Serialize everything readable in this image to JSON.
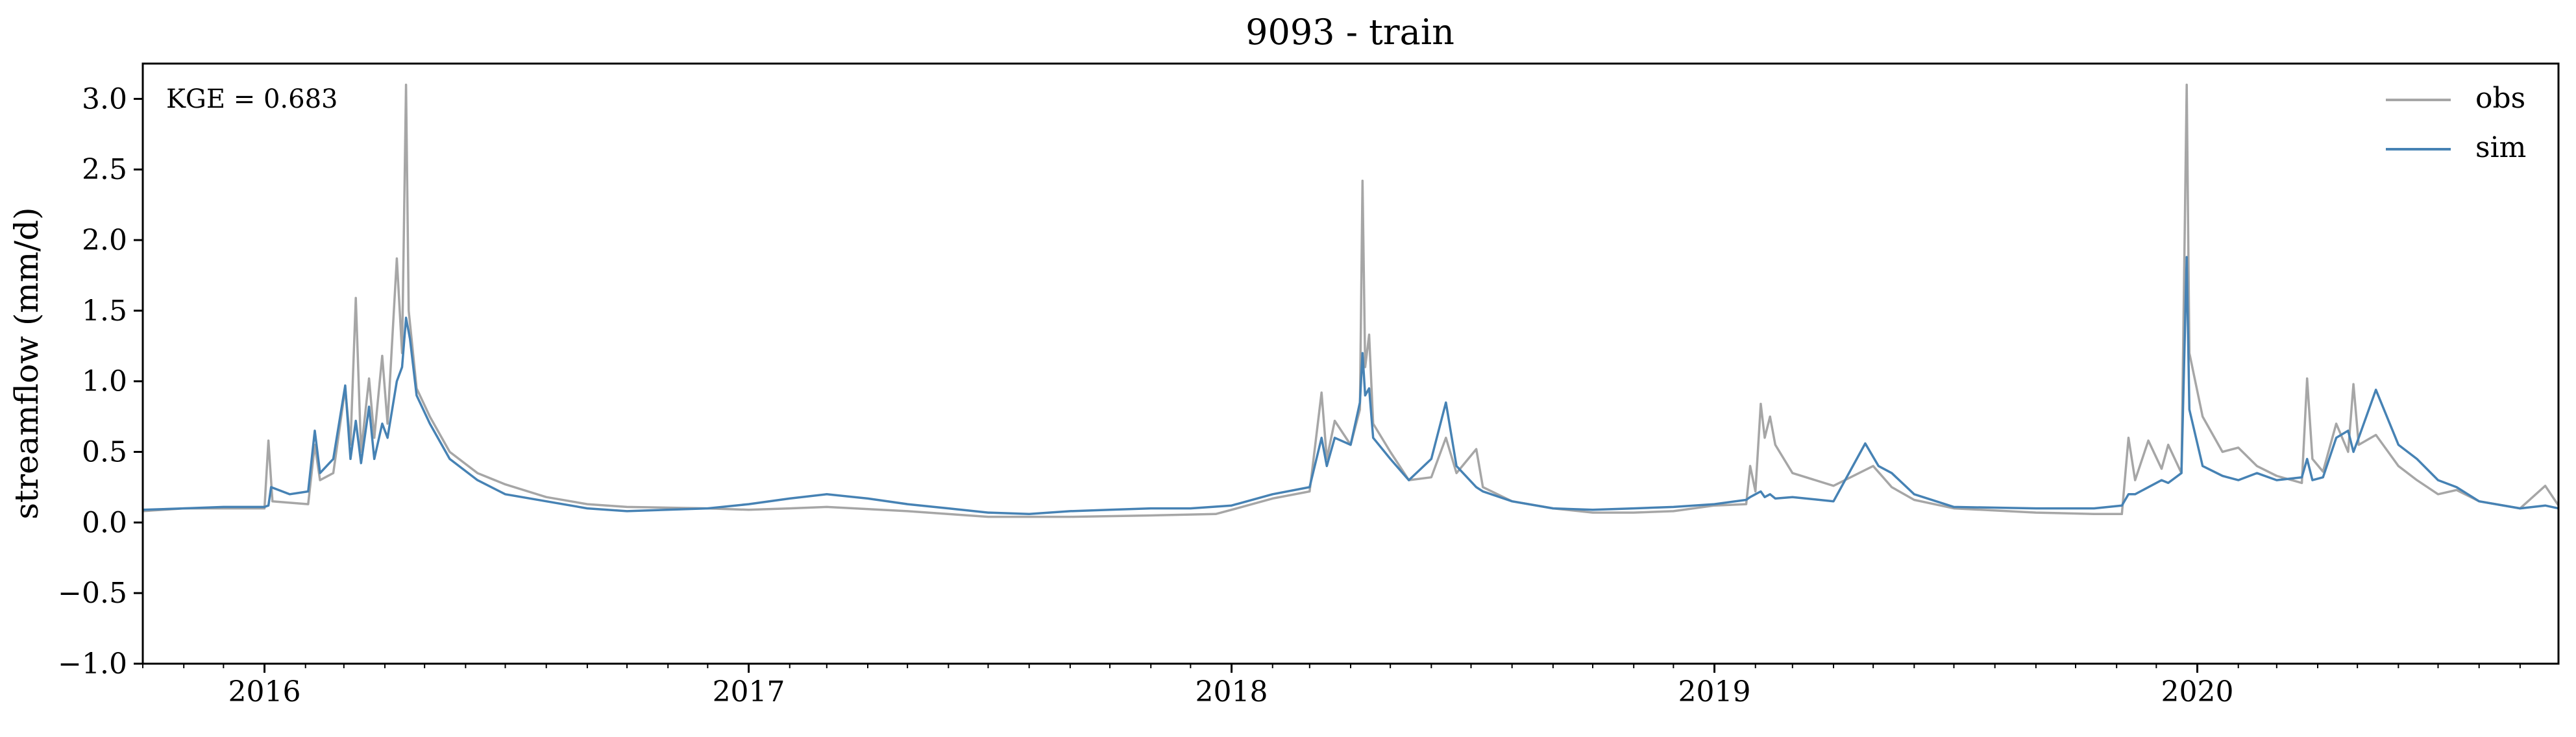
{
  "chart_data": {
    "type": "line",
    "title": "9093 - train",
    "xlabel": "",
    "ylabel": "streamflow (mm/d)",
    "x_range": [
      "2015-10-01",
      "2020-09-30"
    ],
    "ylim": [
      -1.0,
      3.25
    ],
    "xticks": [
      {
        "date": "2016-01-01",
        "label": "2016"
      },
      {
        "date": "2017-01-01",
        "label": "2017"
      },
      {
        "date": "2018-01-01",
        "label": "2018"
      },
      {
        "date": "2019-01-01",
        "label": "2019"
      },
      {
        "date": "2020-01-01",
        "label": "2020"
      }
    ],
    "yticks": [
      -1.0,
      -0.5,
      0.0,
      0.5,
      1.0,
      1.5,
      2.0,
      2.5,
      3.0
    ],
    "ytick_labels": [
      "−1.0",
      "−0.5",
      "0.0",
      "0.5",
      "1.0",
      "1.5",
      "2.0",
      "2.5",
      "3.0"
    ],
    "grid": false,
    "legend_position": "top-right",
    "annotation": "KGE = 0.683",
    "series": [
      {
        "name": "obs",
        "color": "#a6a6a6",
        "points": [
          [
            "2015-10-01",
            0.08
          ],
          [
            "2015-11-01",
            0.1
          ],
          [
            "2015-12-01",
            0.1
          ],
          [
            "2016-01-01",
            0.1
          ],
          [
            "2016-01-04",
            0.58
          ],
          [
            "2016-01-07",
            0.15
          ],
          [
            "2016-01-20",
            0.14
          ],
          [
            "2016-02-03",
            0.13
          ],
          [
            "2016-02-08",
            0.55
          ],
          [
            "2016-02-12",
            0.3
          ],
          [
            "2016-02-22",
            0.35
          ],
          [
            "2016-03-02",
            0.95
          ],
          [
            "2016-03-06",
            0.55
          ],
          [
            "2016-03-10",
            1.59
          ],
          [
            "2016-03-14",
            0.5
          ],
          [
            "2016-03-20",
            1.02
          ],
          [
            "2016-03-24",
            0.6
          ],
          [
            "2016-03-30",
            1.18
          ],
          [
            "2016-04-03",
            0.7
          ],
          [
            "2016-04-10",
            1.87
          ],
          [
            "2016-04-14",
            1.2
          ],
          [
            "2016-04-17",
            3.1
          ],
          [
            "2016-04-19",
            1.5
          ],
          [
            "2016-04-25",
            0.95
          ],
          [
            "2016-05-05",
            0.75
          ],
          [
            "2016-05-20",
            0.5
          ],
          [
            "2016-06-10",
            0.35
          ],
          [
            "2016-07-01",
            0.27
          ],
          [
            "2016-08-01",
            0.18
          ],
          [
            "2016-09-01",
            0.13
          ],
          [
            "2016-10-01",
            0.11
          ],
          [
            "2016-12-01",
            0.1
          ],
          [
            "2017-01-01",
            0.09
          ],
          [
            "2017-02-01",
            0.1
          ],
          [
            "2017-03-01",
            0.11
          ],
          [
            "2017-05-01",
            0.08
          ],
          [
            "2017-07-01",
            0.04
          ],
          [
            "2017-09-01",
            0.04
          ],
          [
            "2017-11-01",
            0.05
          ],
          [
            "2017-12-20",
            0.06
          ],
          [
            "2018-01-05",
            0.1
          ],
          [
            "2018-02-01",
            0.17
          ],
          [
            "2018-03-01",
            0.22
          ],
          [
            "2018-03-10",
            0.92
          ],
          [
            "2018-03-14",
            0.45
          ],
          [
            "2018-03-20",
            0.72
          ],
          [
            "2018-04-01",
            0.55
          ],
          [
            "2018-04-08",
            0.8
          ],
          [
            "2018-04-10",
            2.42
          ],
          [
            "2018-04-12",
            1.1
          ],
          [
            "2018-04-15",
            1.33
          ],
          [
            "2018-04-18",
            0.7
          ],
          [
            "2018-05-01",
            0.5
          ],
          [
            "2018-05-15",
            0.3
          ],
          [
            "2018-06-01",
            0.32
          ],
          [
            "2018-06-12",
            0.6
          ],
          [
            "2018-06-20",
            0.35
          ],
          [
            "2018-07-05",
            0.52
          ],
          [
            "2018-07-10",
            0.25
          ],
          [
            "2018-08-01",
            0.15
          ],
          [
            "2018-09-01",
            0.1
          ],
          [
            "2018-10-01",
            0.07
          ],
          [
            "2018-11-01",
            0.07
          ],
          [
            "2018-12-01",
            0.08
          ],
          [
            "2019-01-01",
            0.12
          ],
          [
            "2019-01-25",
            0.13
          ],
          [
            "2019-01-28",
            0.4
          ],
          [
            "2019-02-01",
            0.22
          ],
          [
            "2019-02-05",
            0.84
          ],
          [
            "2019-02-08",
            0.6
          ],
          [
            "2019-02-12",
            0.75
          ],
          [
            "2019-02-16",
            0.55
          ],
          [
            "2019-03-01",
            0.35
          ],
          [
            "2019-04-01",
            0.26
          ],
          [
            "2019-05-01",
            0.4
          ],
          [
            "2019-05-15",
            0.25
          ],
          [
            "2019-06-01",
            0.16
          ],
          [
            "2019-07-01",
            0.1
          ],
          [
            "2019-09-01",
            0.07
          ],
          [
            "2019-10-15",
            0.06
          ],
          [
            "2019-11-05",
            0.06
          ],
          [
            "2019-11-10",
            0.6
          ],
          [
            "2019-11-15",
            0.3
          ],
          [
            "2019-11-25",
            0.58
          ],
          [
            "2019-12-05",
            0.38
          ],
          [
            "2019-12-10",
            0.55
          ],
          [
            "2019-12-20",
            0.35
          ],
          [
            "2019-12-24",
            3.1
          ],
          [
            "2019-12-26",
            1.2
          ],
          [
            "2020-01-05",
            0.75
          ],
          [
            "2020-01-20",
            0.5
          ],
          [
            "2020-02-01",
            0.53
          ],
          [
            "2020-02-15",
            0.4
          ],
          [
            "2020-03-01",
            0.33
          ],
          [
            "2020-03-20",
            0.28
          ],
          [
            "2020-03-24",
            1.02
          ],
          [
            "2020-03-28",
            0.45
          ],
          [
            "2020-04-05",
            0.36
          ],
          [
            "2020-04-15",
            0.7
          ],
          [
            "2020-04-24",
            0.5
          ],
          [
            "2020-04-28",
            0.98
          ],
          [
            "2020-05-02",
            0.55
          ],
          [
            "2020-05-15",
            0.62
          ],
          [
            "2020-06-01",
            0.4
          ],
          [
            "2020-06-15",
            0.3
          ],
          [
            "2020-07-01",
            0.2
          ],
          [
            "2020-07-15",
            0.23
          ],
          [
            "2020-08-01",
            0.15
          ],
          [
            "2020-09-01",
            0.1
          ],
          [
            "2020-09-20",
            0.26
          ],
          [
            "2020-09-30",
            0.12
          ]
        ]
      },
      {
        "name": "sim",
        "color": "#4682b4",
        "points": [
          [
            "2015-10-01",
            0.09
          ],
          [
            "2015-11-01",
            0.1
          ],
          [
            "2015-12-01",
            0.11
          ],
          [
            "2016-01-01",
            0.11
          ],
          [
            "2016-01-04",
            0.12
          ],
          [
            "2016-01-06",
            0.25
          ],
          [
            "2016-01-20",
            0.2
          ],
          [
            "2016-02-03",
            0.22
          ],
          [
            "2016-02-08",
            0.65
          ],
          [
            "2016-02-12",
            0.35
          ],
          [
            "2016-02-22",
            0.45
          ],
          [
            "2016-03-02",
            0.97
          ],
          [
            "2016-03-06",
            0.45
          ],
          [
            "2016-03-10",
            0.72
          ],
          [
            "2016-03-14",
            0.42
          ],
          [
            "2016-03-20",
            0.82
          ],
          [
            "2016-03-24",
            0.45
          ],
          [
            "2016-03-30",
            0.7
          ],
          [
            "2016-04-03",
            0.6
          ],
          [
            "2016-04-10",
            1.0
          ],
          [
            "2016-04-14",
            1.1
          ],
          [
            "2016-04-17",
            1.45
          ],
          [
            "2016-04-20",
            1.3
          ],
          [
            "2016-04-25",
            0.9
          ],
          [
            "2016-05-05",
            0.7
          ],
          [
            "2016-05-20",
            0.45
          ],
          [
            "2016-06-10",
            0.3
          ],
          [
            "2016-07-01",
            0.2
          ],
          [
            "2016-08-01",
            0.15
          ],
          [
            "2016-09-01",
            0.1
          ],
          [
            "2016-10-01",
            0.08
          ],
          [
            "2016-12-01",
            0.1
          ],
          [
            "2017-01-01",
            0.13
          ],
          [
            "2017-02-01",
            0.17
          ],
          [
            "2017-03-01",
            0.2
          ],
          [
            "2017-04-01",
            0.17
          ],
          [
            "2017-05-01",
            0.13
          ],
          [
            "2017-06-01",
            0.1
          ],
          [
            "2017-07-01",
            0.07
          ],
          [
            "2017-08-01",
            0.06
          ],
          [
            "2017-09-01",
            0.08
          ],
          [
            "2017-10-01",
            0.09
          ],
          [
            "2017-11-01",
            0.1
          ],
          [
            "2017-12-01",
            0.1
          ],
          [
            "2018-01-01",
            0.12
          ],
          [
            "2018-02-01",
            0.2
          ],
          [
            "2018-03-01",
            0.25
          ],
          [
            "2018-03-10",
            0.6
          ],
          [
            "2018-03-14",
            0.4
          ],
          [
            "2018-03-20",
            0.6
          ],
          [
            "2018-04-01",
            0.55
          ],
          [
            "2018-04-08",
            0.85
          ],
          [
            "2018-04-10",
            1.2
          ],
          [
            "2018-04-12",
            0.9
          ],
          [
            "2018-04-15",
            0.95
          ],
          [
            "2018-04-18",
            0.6
          ],
          [
            "2018-05-01",
            0.45
          ],
          [
            "2018-05-15",
            0.3
          ],
          [
            "2018-06-01",
            0.45
          ],
          [
            "2018-06-12",
            0.85
          ],
          [
            "2018-06-20",
            0.4
          ],
          [
            "2018-07-05",
            0.25
          ],
          [
            "2018-07-10",
            0.22
          ],
          [
            "2018-08-01",
            0.15
          ],
          [
            "2018-09-01",
            0.1
          ],
          [
            "2018-10-01",
            0.09
          ],
          [
            "2018-11-01",
            0.1
          ],
          [
            "2018-12-01",
            0.11
          ],
          [
            "2019-01-01",
            0.13
          ],
          [
            "2019-01-25",
            0.16
          ],
          [
            "2019-01-28",
            0.18
          ],
          [
            "2019-02-01",
            0.2
          ],
          [
            "2019-02-05",
            0.22
          ],
          [
            "2019-02-08",
            0.18
          ],
          [
            "2019-02-12",
            0.2
          ],
          [
            "2019-02-16",
            0.17
          ],
          [
            "2019-03-01",
            0.18
          ],
          [
            "2019-04-01",
            0.15
          ],
          [
            "2019-04-25",
            0.56
          ],
          [
            "2019-05-05",
            0.4
          ],
          [
            "2019-05-15",
            0.35
          ],
          [
            "2019-06-01",
            0.2
          ],
          [
            "2019-07-01",
            0.11
          ],
          [
            "2019-09-01",
            0.1
          ],
          [
            "2019-10-15",
            0.1
          ],
          [
            "2019-11-05",
            0.12
          ],
          [
            "2019-11-10",
            0.2
          ],
          [
            "2019-11-15",
            0.2
          ],
          [
            "2019-11-25",
            0.25
          ],
          [
            "2019-12-05",
            0.3
          ],
          [
            "2019-12-10",
            0.28
          ],
          [
            "2019-12-20",
            0.35
          ],
          [
            "2019-12-24",
            1.88
          ],
          [
            "2019-12-26",
            0.8
          ],
          [
            "2020-01-05",
            0.4
          ],
          [
            "2020-01-20",
            0.33
          ],
          [
            "2020-02-01",
            0.3
          ],
          [
            "2020-02-15",
            0.35
          ],
          [
            "2020-03-01",
            0.3
          ],
          [
            "2020-03-20",
            0.32
          ],
          [
            "2020-03-24",
            0.45
          ],
          [
            "2020-03-28",
            0.3
          ],
          [
            "2020-04-05",
            0.32
          ],
          [
            "2020-04-15",
            0.6
          ],
          [
            "2020-04-24",
            0.65
          ],
          [
            "2020-04-28",
            0.5
          ],
          [
            "2020-05-02",
            0.6
          ],
          [
            "2020-05-15",
            0.94
          ],
          [
            "2020-06-01",
            0.55
          ],
          [
            "2020-06-15",
            0.45
          ],
          [
            "2020-07-01",
            0.3
          ],
          [
            "2020-07-15",
            0.25
          ],
          [
            "2020-08-01",
            0.15
          ],
          [
            "2020-09-01",
            0.1
          ],
          [
            "2020-09-20",
            0.12
          ],
          [
            "2020-09-30",
            0.1
          ]
        ]
      }
    ]
  }
}
